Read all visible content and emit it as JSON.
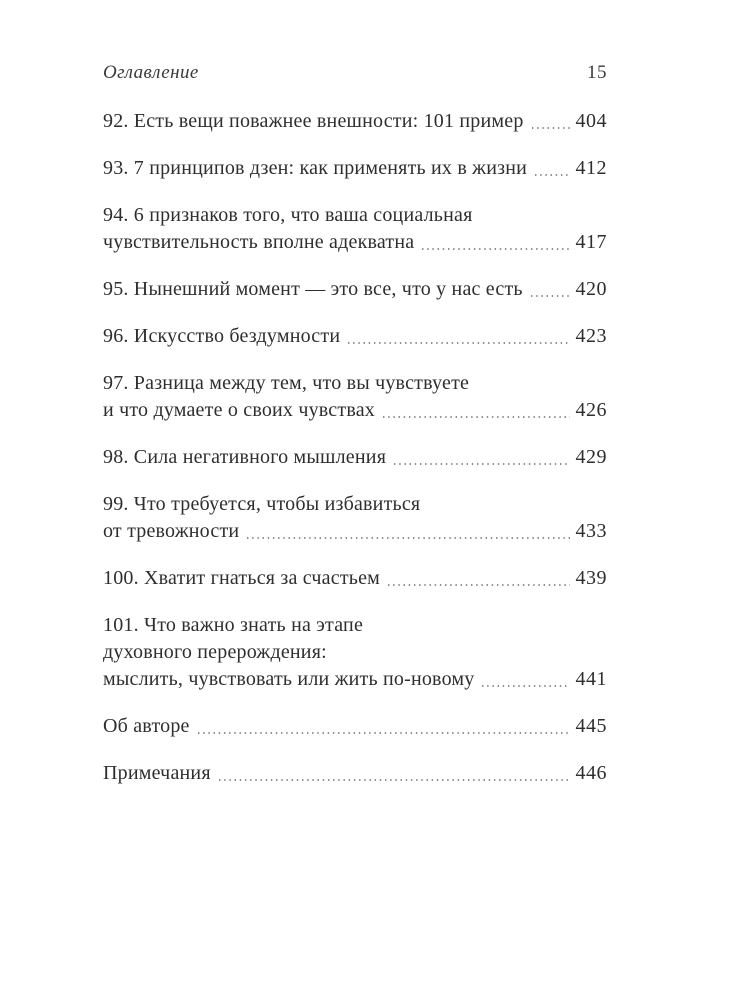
{
  "header": {
    "title": "Оглавление",
    "page_number": "15"
  },
  "toc": {
    "entries": [
      {
        "lines": [
          "92. Есть вещи поважнее внешности: 101 пример"
        ],
        "page": "404"
      },
      {
        "lines": [
          "93. 7 принципов дзен: как применять их в жизни"
        ],
        "page": "412"
      },
      {
        "lines": [
          "94. 6 признаков того, что ваша социальная",
          "чувствительность вполне адекватна"
        ],
        "page": "417"
      },
      {
        "lines": [
          "95. Нынешний момент — это все, что у нас есть"
        ],
        "page": "420"
      },
      {
        "lines": [
          "96. Искусство бездумности"
        ],
        "page": "423"
      },
      {
        "lines": [
          "97. Разница между тем, что вы чувствуете",
          "и что думаете о своих чувствах"
        ],
        "page": "426"
      },
      {
        "lines": [
          "98. Сила негативного мышления"
        ],
        "page": "429"
      },
      {
        "lines": [
          "99. Что требуется, чтобы избавиться",
          "от тревожности"
        ],
        "page": "433"
      },
      {
        "lines": [
          "100. Хватит гнаться за счастьем"
        ],
        "page": "439"
      },
      {
        "lines": [
          "101. Что важно знать на этапе",
          "духовного перерождения:",
          "мыслить, чувствовать или жить по-новому"
        ],
        "page": "441"
      },
      {
        "lines": [
          "Об авторе"
        ],
        "page": "445"
      },
      {
        "lines": [
          "Примечания"
        ],
        "page": "446"
      }
    ]
  },
  "colors": {
    "text": "#2e2e2e",
    "dots": "#8f8f8f",
    "paper": "#ffffff"
  }
}
